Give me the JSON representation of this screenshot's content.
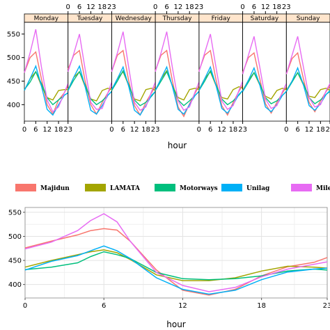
{
  "chart_data": [
    {
      "type": "line",
      "layout": "panels",
      "panels": [
        "Monday",
        "Tuesday",
        "Wednesday",
        "Thursday",
        "Friday",
        "Saturday",
        "Sunday"
      ],
      "x_ticks_bottom": [
        "0",
        "6",
        "12",
        "18",
        "23"
      ],
      "x_ticks_top": [
        "0",
        "6",
        "12",
        "18",
        "23"
      ],
      "y_ticks": [
        "400",
        "450",
        "500",
        "550"
      ],
      "xlabel": "hour",
      "xlim": [
        0,
        23
      ],
      "ylim": [
        365,
        575
      ],
      "x": [
        0,
        3,
        6,
        9,
        12,
        15,
        18,
        21,
        23
      ],
      "panel_series": {
        "Monday": {
          "Majidun": [
            468,
            500,
            512,
            455,
            400,
            380,
            410,
            425,
            440
          ],
          "LAMATA": [
            430,
            455,
            470,
            440,
            415,
            410,
            430,
            432,
            432
          ],
          "Motorways": [
            432,
            448,
            470,
            445,
            415,
            400,
            410,
            420,
            425
          ],
          "Unilag": [
            430,
            455,
            482,
            440,
            390,
            378,
            400,
            420,
            425
          ],
          "Mile": [
            468,
            510,
            560,
            480,
            410,
            385,
            395,
            425,
            445
          ]
        },
        "Tuesday": {
          "Majidun": [
            475,
            505,
            515,
            450,
            400,
            380,
            405,
            425,
            438
          ],
          "LAMATA": [
            432,
            458,
            470,
            438,
            412,
            408,
            430,
            435,
            432
          ],
          "Motorways": [
            430,
            452,
            470,
            442,
            412,
            400,
            408,
            420,
            428
          ],
          "Unilag": [
            430,
            458,
            482,
            438,
            388,
            380,
            398,
            420,
            428
          ],
          "Mile": [
            470,
            508,
            550,
            475,
            405,
            390,
            392,
            425,
            448
          ]
        },
        "Wednesday": {
          "Majidun": [
            470,
            505,
            515,
            450,
            398,
            378,
            405,
            425,
            440
          ],
          "LAMATA": [
            430,
            455,
            470,
            440,
            412,
            408,
            432,
            435,
            430
          ],
          "Motorways": [
            430,
            450,
            472,
            442,
            410,
            398,
            405,
            418,
            428
          ],
          "Unilag": [
            432,
            455,
            480,
            438,
            388,
            378,
            398,
            420,
            428
          ],
          "Mile": [
            470,
            510,
            555,
            478,
            405,
            388,
            395,
            428,
            448
          ]
        },
        "Thursday": {
          "Majidun": [
            472,
            505,
            515,
            450,
            395,
            375,
            402,
            425,
            440
          ],
          "LAMATA": [
            430,
            455,
            472,
            440,
            415,
            410,
            432,
            435,
            432
          ],
          "Motorways": [
            430,
            450,
            470,
            440,
            410,
            398,
            408,
            420,
            428
          ],
          "Unilag": [
            430,
            455,
            480,
            438,
            390,
            380,
            400,
            420,
            428
          ],
          "Mile": [
            470,
            510,
            555,
            478,
            408,
            388,
            395,
            428,
            448
          ]
        },
        "Friday": {
          "Majidun": [
            472,
            505,
            515,
            452,
            398,
            378,
            405,
            428,
            442
          ],
          "LAMATA": [
            432,
            455,
            470,
            440,
            415,
            412,
            432,
            438,
            435
          ],
          "Motorways": [
            430,
            450,
            472,
            442,
            412,
            400,
            408,
            420,
            430
          ],
          "Unilag": [
            430,
            455,
            480,
            440,
            392,
            382,
            400,
            422,
            430
          ],
          "Mile": [
            470,
            510,
            550,
            478,
            408,
            390,
            398,
            430,
            450
          ]
        },
        "Saturday": {
          "Majidun": [
            468,
            500,
            510,
            455,
            402,
            382,
            405,
            425,
            438
          ],
          "LAMATA": [
            430,
            452,
            468,
            442,
            418,
            412,
            430,
            435,
            432
          ],
          "Motorways": [
            428,
            448,
            468,
            445,
            415,
            402,
            408,
            420,
            428
          ],
          "Unilag": [
            428,
            452,
            478,
            442,
            395,
            385,
            400,
            420,
            428
          ],
          "Mile": [
            465,
            505,
            545,
            480,
            412,
            392,
            398,
            428,
            445
          ]
        },
        "Sunday": {
          "Majidun": [
            465,
            498,
            510,
            455,
            405,
            385,
            408,
            428,
            440
          ],
          "LAMATA": [
            430,
            450,
            468,
            442,
            418,
            415,
            432,
            435,
            430
          ],
          "Motorways": [
            428,
            448,
            468,
            445,
            415,
            402,
            410,
            422,
            428
          ],
          "Unilag": [
            428,
            450,
            478,
            442,
            398,
            388,
            402,
            422,
            430
          ],
          "Mile": [
            465,
            505,
            545,
            480,
            415,
            395,
            400,
            430,
            445
          ]
        }
      }
    },
    {
      "type": "line",
      "xlabel": "hour",
      "x_ticks": [
        "0",
        "6",
        "12",
        "18",
        "23"
      ],
      "y_ticks": [
        "400",
        "450",
        "500",
        "550"
      ],
      "xlim": [
        0,
        23
      ],
      "ylim": [
        372,
        560
      ],
      "grid": true,
      "legend_position": "top",
      "x": [
        0,
        2,
        4,
        5,
        6,
        7,
        8,
        10,
        12,
        14,
        16,
        18,
        20,
        22,
        23
      ],
      "series": [
        {
          "name": "Majidun",
          "color": "#F8766D",
          "values": [
            476,
            490,
            503,
            512,
            516,
            513,
            490,
            430,
            388,
            378,
            390,
            418,
            437,
            446,
            456
          ]
        },
        {
          "name": "LAMATA",
          "color": "#A3A500",
          "values": [
            436,
            450,
            462,
            468,
            472,
            466,
            452,
            420,
            408,
            408,
            414,
            428,
            438,
            436,
            434
          ]
        },
        {
          "name": "Motorways",
          "color": "#00BF7D",
          "values": [
            431,
            436,
            445,
            458,
            468,
            462,
            454,
            425,
            412,
            410,
            412,
            418,
            428,
            432,
            430
          ]
        },
        {
          "name": "Unilag",
          "color": "#00B0F6",
          "values": [
            430,
            448,
            460,
            470,
            480,
            470,
            454,
            414,
            390,
            380,
            388,
            410,
            426,
            432,
            434
          ]
        },
        {
          "name": "Mile",
          "color": "#E76BF3",
          "values": [
            474,
            488,
            512,
            533,
            547,
            530,
            490,
            425,
            398,
            385,
            394,
            416,
            432,
            442,
            447
          ]
        }
      ]
    }
  ]
}
